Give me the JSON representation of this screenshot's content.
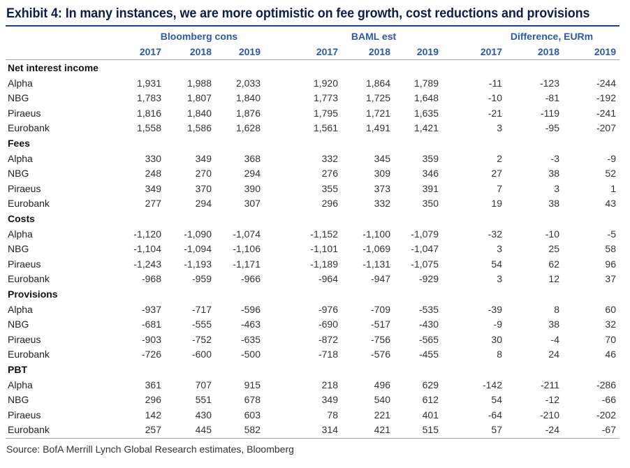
{
  "title": "Exhibit 4: In many instances, we are more optimistic on fee growth, cost reductions and provisions",
  "groups": [
    "Bloomberg cons",
    "BAML est",
    "Difference, EURm"
  ],
  "years": [
    "2017",
    "2018",
    "2019",
    "2017",
    "2018",
    "2019",
    "2017",
    "2018",
    "2019"
  ],
  "sections": [
    {
      "name": "Net interest income",
      "rows": [
        {
          "bank": "Alpha",
          "values": [
            "1,931",
            "1,988",
            "2,033",
            "1,920",
            "1,864",
            "1,789",
            "-11",
            "-123",
            "-244"
          ]
        },
        {
          "bank": "NBG",
          "values": [
            "1,783",
            "1,807",
            "1,840",
            "1,773",
            "1,725",
            "1,648",
            "-10",
            "-81",
            "-192"
          ]
        },
        {
          "bank": "Piraeus",
          "values": [
            "1,816",
            "1,840",
            "1,876",
            "1,795",
            "1,721",
            "1,635",
            "-21",
            "-119",
            "-241"
          ]
        },
        {
          "bank": "Eurobank",
          "values": [
            "1,558",
            "1,586",
            "1,628",
            "1,561",
            "1,491",
            "1,421",
            "3",
            "-95",
            "-207"
          ]
        }
      ]
    },
    {
      "name": "Fees",
      "rows": [
        {
          "bank": "Alpha",
          "values": [
            "330",
            "349",
            "368",
            "332",
            "345",
            "359",
            "2",
            "-3",
            "-9"
          ]
        },
        {
          "bank": "NBG",
          "values": [
            "248",
            "270",
            "294",
            "276",
            "309",
            "346",
            "27",
            "38",
            "52"
          ]
        },
        {
          "bank": "Piraeus",
          "values": [
            "349",
            "370",
            "390",
            "355",
            "373",
            "391",
            "7",
            "3",
            "1"
          ]
        },
        {
          "bank": "Eurobank",
          "values": [
            "277",
            "294",
            "307",
            "296",
            "332",
            "350",
            "19",
            "38",
            "43"
          ]
        }
      ]
    },
    {
      "name": "Costs",
      "rows": [
        {
          "bank": "Alpha",
          "values": [
            "-1,120",
            "-1,090",
            "-1,074",
            "-1,152",
            "-1,100",
            "-1,079",
            "-32",
            "-10",
            "-5"
          ]
        },
        {
          "bank": "NBG",
          "values": [
            "-1,104",
            "-1,094",
            "-1,106",
            "-1,101",
            "-1,069",
            "-1,047",
            "3",
            "25",
            "58"
          ]
        },
        {
          "bank": "Piraeus",
          "values": [
            "-1,243",
            "-1,193",
            "-1,171",
            "-1,189",
            "-1,131",
            "-1,075",
            "54",
            "62",
            "96"
          ]
        },
        {
          "bank": "Eurobank",
          "values": [
            "-968",
            "-959",
            "-966",
            "-964",
            "-947",
            "-929",
            "3",
            "12",
            "37"
          ]
        }
      ]
    },
    {
      "name": "Provisions",
      "rows": [
        {
          "bank": "Alpha",
          "values": [
            "-937",
            "-717",
            "-596",
            "-976",
            "-709",
            "-535",
            "-39",
            "8",
            "60"
          ]
        },
        {
          "bank": "NBG",
          "values": [
            "-681",
            "-555",
            "-463",
            "-690",
            "-517",
            "-430",
            "-9",
            "38",
            "32"
          ]
        },
        {
          "bank": "Piraeus",
          "values": [
            "-903",
            "-752",
            "-635",
            "-872",
            "-756",
            "-565",
            "30",
            "-4",
            "70"
          ]
        },
        {
          "bank": "Eurobank",
          "values": [
            "-726",
            "-600",
            "-500",
            "-718",
            "-576",
            "-455",
            "8",
            "24",
            "46"
          ]
        }
      ]
    },
    {
      "name": "PBT",
      "rows": [
        {
          "bank": "Alpha",
          "values": [
            "361",
            "707",
            "915",
            "218",
            "496",
            "629",
            "-142",
            "-211",
            "-286"
          ]
        },
        {
          "bank": "NBG",
          "values": [
            "296",
            "551",
            "678",
            "349",
            "540",
            "612",
            "54",
            "-12",
            "-66"
          ]
        },
        {
          "bank": "Piraeus",
          "values": [
            "142",
            "430",
            "603",
            "78",
            "221",
            "401",
            "-64",
            "-210",
            "-202"
          ]
        },
        {
          "bank": "Eurobank",
          "values": [
            "257",
            "445",
            "582",
            "314",
            "421",
            "515",
            "57",
            "-24",
            "-67"
          ]
        }
      ]
    }
  ],
  "source": "Source: BofA Merrill Lynch Global Research estimates, Bloomberg"
}
